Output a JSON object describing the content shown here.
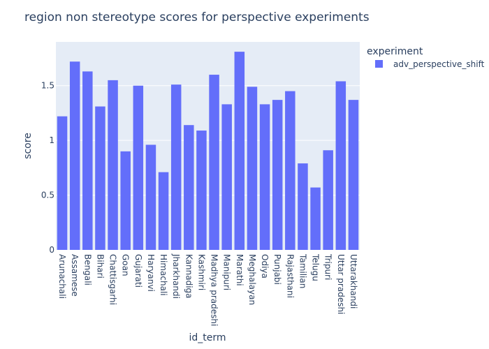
{
  "chart_data": {
    "type": "bar",
    "title": "region non stereotype scores for perspective experiments",
    "xlabel": "id_term",
    "ylabel": "score",
    "ylim": [
      0,
      1.9
    ],
    "yticks": [
      0,
      0.5,
      1,
      1.5
    ],
    "ytick_labels": [
      "0",
      "0.5",
      "1",
      "1.5"
    ],
    "grid": true,
    "legend_title": "experiment",
    "legend_position": "top-right",
    "categories": [
      "Arunachali",
      "Assamese",
      "Bengali",
      "Bihari",
      "Chattisgarhi",
      "Goan",
      "Gujarati",
      "Haryanvi",
      "Himachali",
      "Jharkhandi",
      "Kannadiga",
      "Kashmiri",
      "Madhya pradeshi",
      "Manipuri",
      "Marathi",
      "Meghalayan",
      "Odiya",
      "Punjabi",
      "Rajasthani",
      "Tamilian",
      "Telugu",
      "Tripuri",
      "Uttar pradeshi",
      "Uttarakhandi"
    ],
    "series": [
      {
        "name": "adv_perspective_shift",
        "color": "#636efa",
        "values": [
          1.22,
          1.72,
          1.63,
          1.31,
          1.55,
          0.9,
          1.5,
          0.96,
          0.71,
          1.51,
          1.14,
          1.09,
          1.6,
          1.33,
          1.81,
          1.49,
          1.33,
          1.37,
          1.45,
          0.79,
          0.57,
          0.91,
          1.54,
          1.37
        ]
      }
    ],
    "colors": {
      "plot_bg": "#e5ecf6",
      "grid": "#ffffff",
      "text": "#2a3f5f"
    }
  }
}
